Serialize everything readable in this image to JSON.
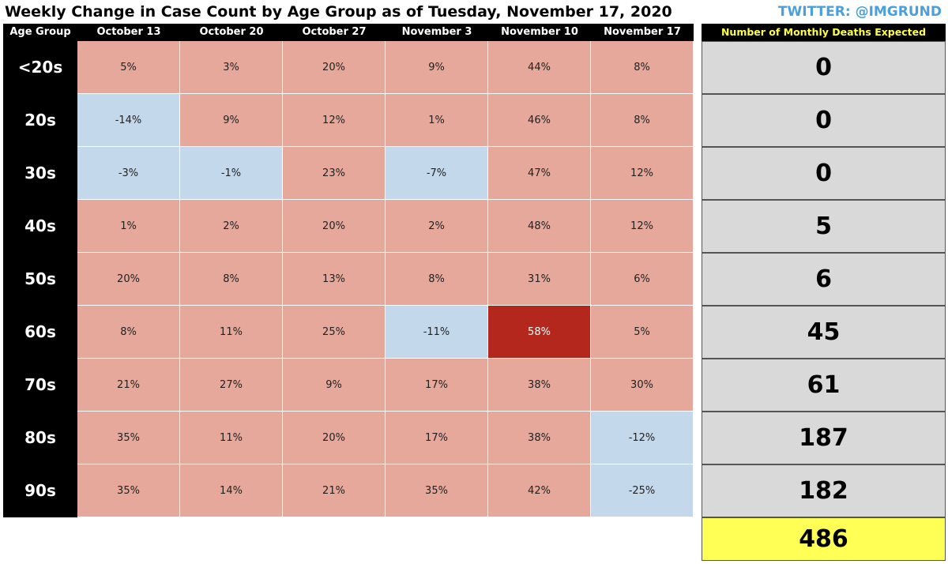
{
  "header": {
    "title": "Weekly Change in Case Count by Age Group as of Tuesday, November 17, 2020",
    "twitter": "TWITTER: @IMGRUND"
  },
  "colors": {
    "positive": "#e6a89a",
    "negative": "#c4d8ec",
    "max_highlight": "#b3271d",
    "total": "#ffff55",
    "deaths_cell": "#d9d9d9"
  },
  "chart_data": {
    "type": "heatmap",
    "title": "Weekly Change in Case Count by Age Group as of Tuesday, November 17, 2020",
    "row_header": "Age Group",
    "columns": [
      "October 13",
      "October 20",
      "October 27",
      "November 3",
      "November 10",
      "November 17"
    ],
    "rows": [
      "<20s",
      "20s",
      "30s",
      "40s",
      "50s",
      "60s",
      "70s",
      "80s",
      "90s"
    ],
    "values": [
      [
        5,
        3,
        20,
        9,
        44,
        8
      ],
      [
        -14,
        9,
        12,
        1,
        46,
        8
      ],
      [
        -3,
        -1,
        23,
        -7,
        47,
        12
      ],
      [
        1,
        2,
        20,
        2,
        48,
        12
      ],
      [
        20,
        8,
        13,
        8,
        31,
        6
      ],
      [
        8,
        11,
        25,
        -11,
        58,
        5
      ],
      [
        21,
        27,
        9,
        17,
        38,
        30
      ],
      [
        35,
        11,
        20,
        17,
        38,
        -12
      ],
      [
        35,
        14,
        21,
        35,
        42,
        -25
      ]
    ],
    "value_suffix": "%",
    "deaths": {
      "header": "Number of Monthly Deaths Expected",
      "values": [
        0,
        0,
        0,
        5,
        6,
        45,
        61,
        187,
        182
      ],
      "total": 486
    }
  }
}
